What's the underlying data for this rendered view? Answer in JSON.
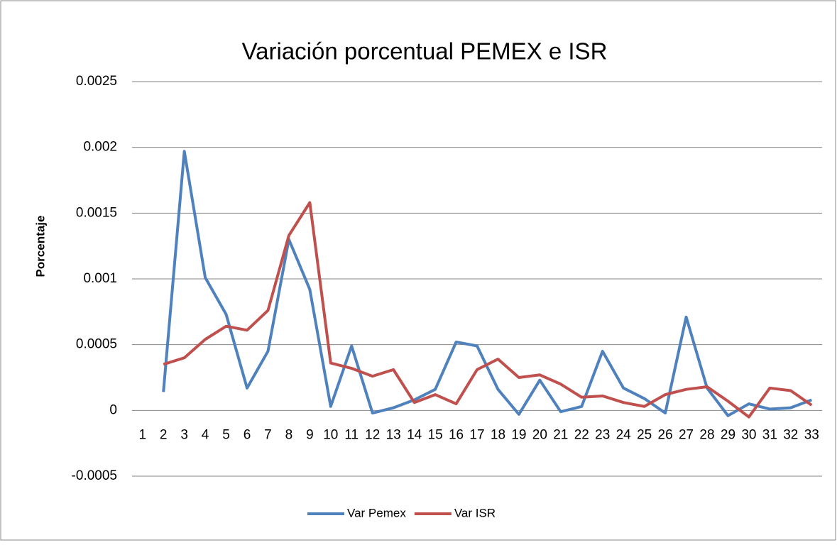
{
  "chart_data": {
    "type": "line",
    "title": "Variación porcentual PEMEX e ISR",
    "y_label": "Porcentaje",
    "categories": [
      "1",
      "2",
      "3",
      "4",
      "5",
      "6",
      "7",
      "8",
      "9",
      "10",
      "11",
      "12",
      "13",
      "14",
      "15",
      "16",
      "17",
      "18",
      "19",
      "20",
      "21",
      "22",
      "23",
      "24",
      "25",
      "26",
      "27",
      "28",
      "29",
      "30",
      "31",
      "32",
      "33"
    ],
    "series": [
      {
        "name": "Var Pemex",
        "color": "#4f81bd",
        "values": [
          null,
          0.00014,
          0.00197,
          0.00101,
          0.00073,
          0.00017,
          0.00045,
          0.0013,
          0.00092,
          3e-05,
          0.00049,
          -2e-05,
          2e-05,
          8e-05,
          0.00016,
          0.00052,
          0.00049,
          0.00016,
          -3e-05,
          0.00023,
          -1e-05,
          3e-05,
          0.00045,
          0.00017,
          9e-05,
          -2e-05,
          0.00071,
          0.00017,
          -4e-05,
          5e-05,
          1e-05,
          2e-05,
          8e-05
        ]
      },
      {
        "name": "Var ISR",
        "color": "#c0504d",
        "values": [
          null,
          0.00035,
          0.0004,
          0.00054,
          0.00064,
          0.00061,
          0.00076,
          0.00133,
          0.00158,
          0.00036,
          0.00032,
          0.00026,
          0.00031,
          6e-05,
          0.00012,
          5e-05,
          0.00031,
          0.00039,
          0.00025,
          0.00027,
          0.0002,
          0.0001,
          0.00011,
          6e-05,
          3e-05,
          0.00012,
          0.00016,
          0.00018,
          7e-05,
          -5e-05,
          0.00017,
          0.00015,
          4e-05
        ]
      }
    ],
    "ylim": [
      -0.0005,
      0.0025
    ],
    "yticks": [
      -0.0005,
      0,
      0.0005,
      0.001,
      0.0015,
      0.002,
      0.0025
    ],
    "grid": true,
    "legend": "bottom"
  }
}
